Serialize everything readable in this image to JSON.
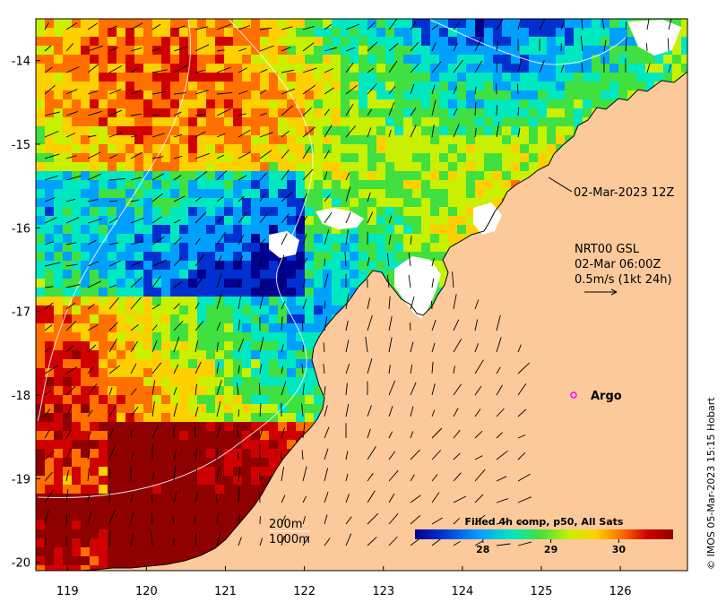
{
  "map": {
    "x_ticks": [
      "119",
      "120",
      "121",
      "122",
      "123",
      "124",
      "125",
      "126"
    ],
    "y_ticks": [
      "-14",
      "-15",
      "-16",
      "-17",
      "-18",
      "-19",
      "-20"
    ],
    "lon_range": [
      118.6,
      126.85
    ],
    "lat_range": [
      -20.1,
      -13.5
    ],
    "colors": {
      "land": "#fcc99b",
      "cloud": "#ffffff",
      "frame": "#000000",
      "argo_marker": "#ff00ff",
      "contour": "#ffffff"
    }
  },
  "annotations": {
    "track_time": "02-Mar-2023 12Z",
    "current_product": "NRT00 GSL",
    "current_time": "02-Mar 06:00Z",
    "current_scale": "0.5m/s (1kt 24h)",
    "argo": "Argo",
    "contour_200": "200m",
    "contour_1000": "1000m"
  },
  "colorbar": {
    "title": "Filled 4h comp, p50, All Sats",
    "ticks": [
      "28",
      "29",
      "30"
    ],
    "tick_values": [
      28,
      29,
      30
    ],
    "range": [
      27,
      30.8
    ],
    "colors": [
      "#00008f",
      "#0030d0",
      "#00a0ff",
      "#00e8c0",
      "#40e040",
      "#c8f000",
      "#ffd000",
      "#ff7000",
      "#d00000",
      "#8f0000"
    ]
  },
  "credit": "© IMOS 05-Mar-2023 15:15 Hobart"
}
